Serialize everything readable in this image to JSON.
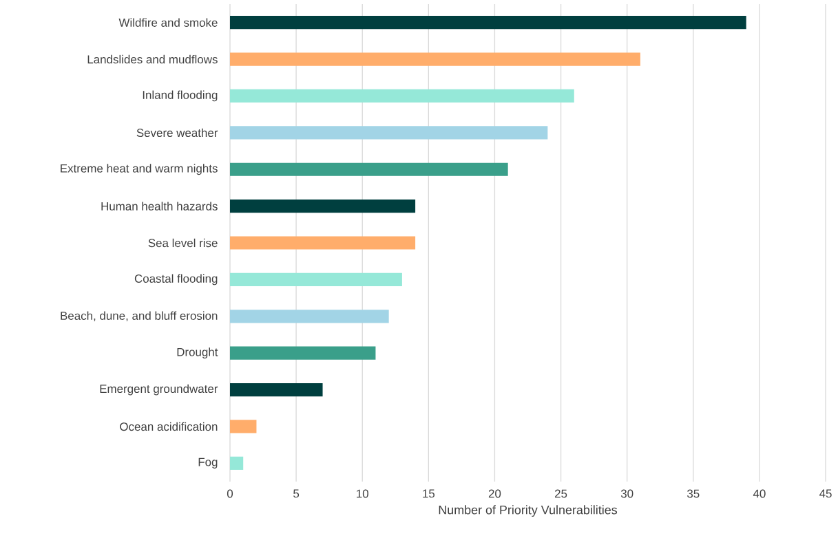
{
  "chart_data": {
    "type": "bar",
    "orientation": "horizontal",
    "xlabel": "Number of Priority Vulnerabilities",
    "categories": [
      "Wildfire and smoke",
      "Landslides and mudflows",
      "Inland flooding",
      "Severe weather",
      "Extreme heat and warm nights",
      "Human health hazards",
      "Sea level rise",
      "Coastal flooding",
      "Beach, dune, and bluff erosion",
      "Drought",
      "Emergent groundwater",
      "Ocean acidification",
      "Fog"
    ],
    "values": [
      39,
      31,
      26,
      24,
      21,
      14,
      14,
      13,
      12,
      11,
      7,
      2,
      1
    ],
    "colors": [
      "#003f3f",
      "#ffad6b",
      "#95e8d8",
      "#a2d4e6",
      "#3a9f8a",
      "#003f3f",
      "#ffad6b",
      "#95e8d8",
      "#a2d4e6",
      "#3a9f8a",
      "#003f3f",
      "#ffad6b",
      "#95e8d8"
    ],
    "xlim": [
      0,
      45
    ],
    "xticks": [
      0,
      5,
      10,
      15,
      20,
      25,
      30,
      35,
      40,
      45
    ],
    "grid": "x"
  }
}
